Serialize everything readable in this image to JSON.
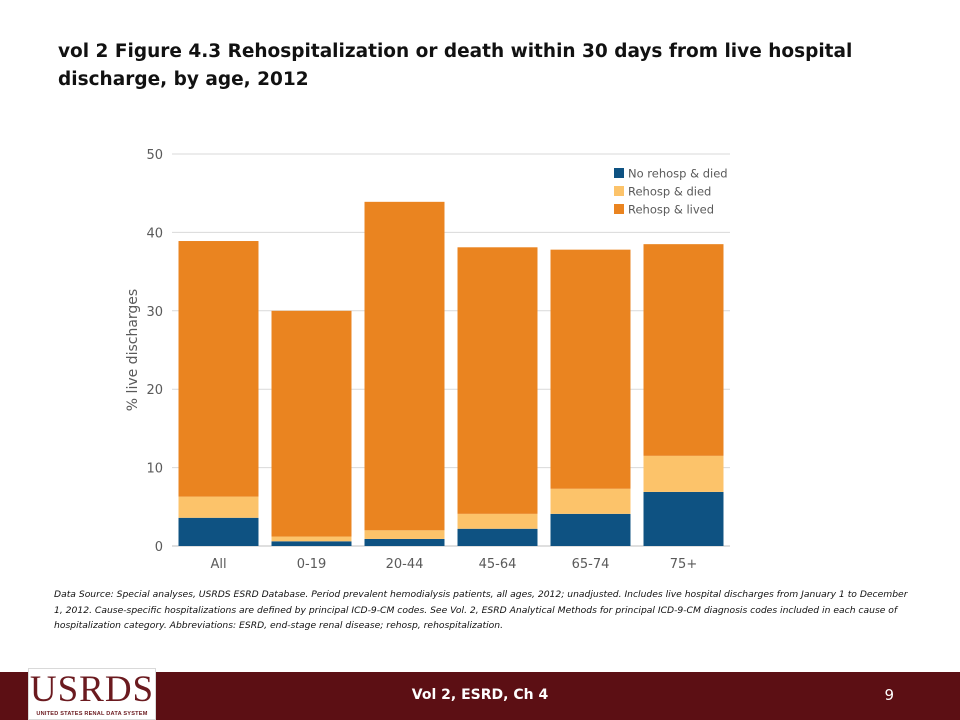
{
  "slide": {
    "title": "vol 2 Figure 4.3 Rehospitalization or death within 30 days from live hospital discharge, by age, 2012",
    "source_note": "Data Source: Special analyses, USRDS ESRD Database. Period prevalent hemodialysis patients, all ages, 2012; unadjusted. Includes live hospital discharges from January 1 to December 1, 2012. Cause-specific hospitalizations are defined by principal ICD-9-CM codes. See Vol. 2, ESRD Analytical Methods for principal ICD-9-CM diagnosis codes included in each cause of hospitalization category. Abbreviations: ESRD, end-stage renal disease; rehosp, rehospitalization.",
    "footer_text": "Vol 2, ESRD, Ch 4",
    "page_number": "9",
    "logo_text": "USRDS",
    "logo_subtext": "UNITED STATES RENAL DATA SYSTEM"
  },
  "chart_data": {
    "type": "bar",
    "stacked": true,
    "title": "",
    "xlabel": "",
    "ylabel": "% live discharges",
    "ylim": [
      0,
      50
    ],
    "yticks": [
      0,
      10,
      20,
      30,
      40,
      50
    ],
    "grid": true,
    "legend_position": "top-right",
    "categories": [
      "All",
      "0-19",
      "20-44",
      "45-64",
      "65-74",
      "75+"
    ],
    "series": [
      {
        "name": "No rehosp & died",
        "color": "#0e5282",
        "values": [
          3.6,
          0.6,
          0.9,
          2.2,
          4.1,
          6.9
        ]
      },
      {
        "name": "Rehosp & died",
        "color": "#fcc36a",
        "values": [
          2.7,
          0.6,
          1.1,
          1.9,
          3.2,
          4.6
        ]
      },
      {
        "name": "Rehosp & lived",
        "color": "#ea8420",
        "values": [
          32.6,
          28.8,
          41.9,
          34.0,
          30.5,
          27.0
        ]
      }
    ]
  }
}
